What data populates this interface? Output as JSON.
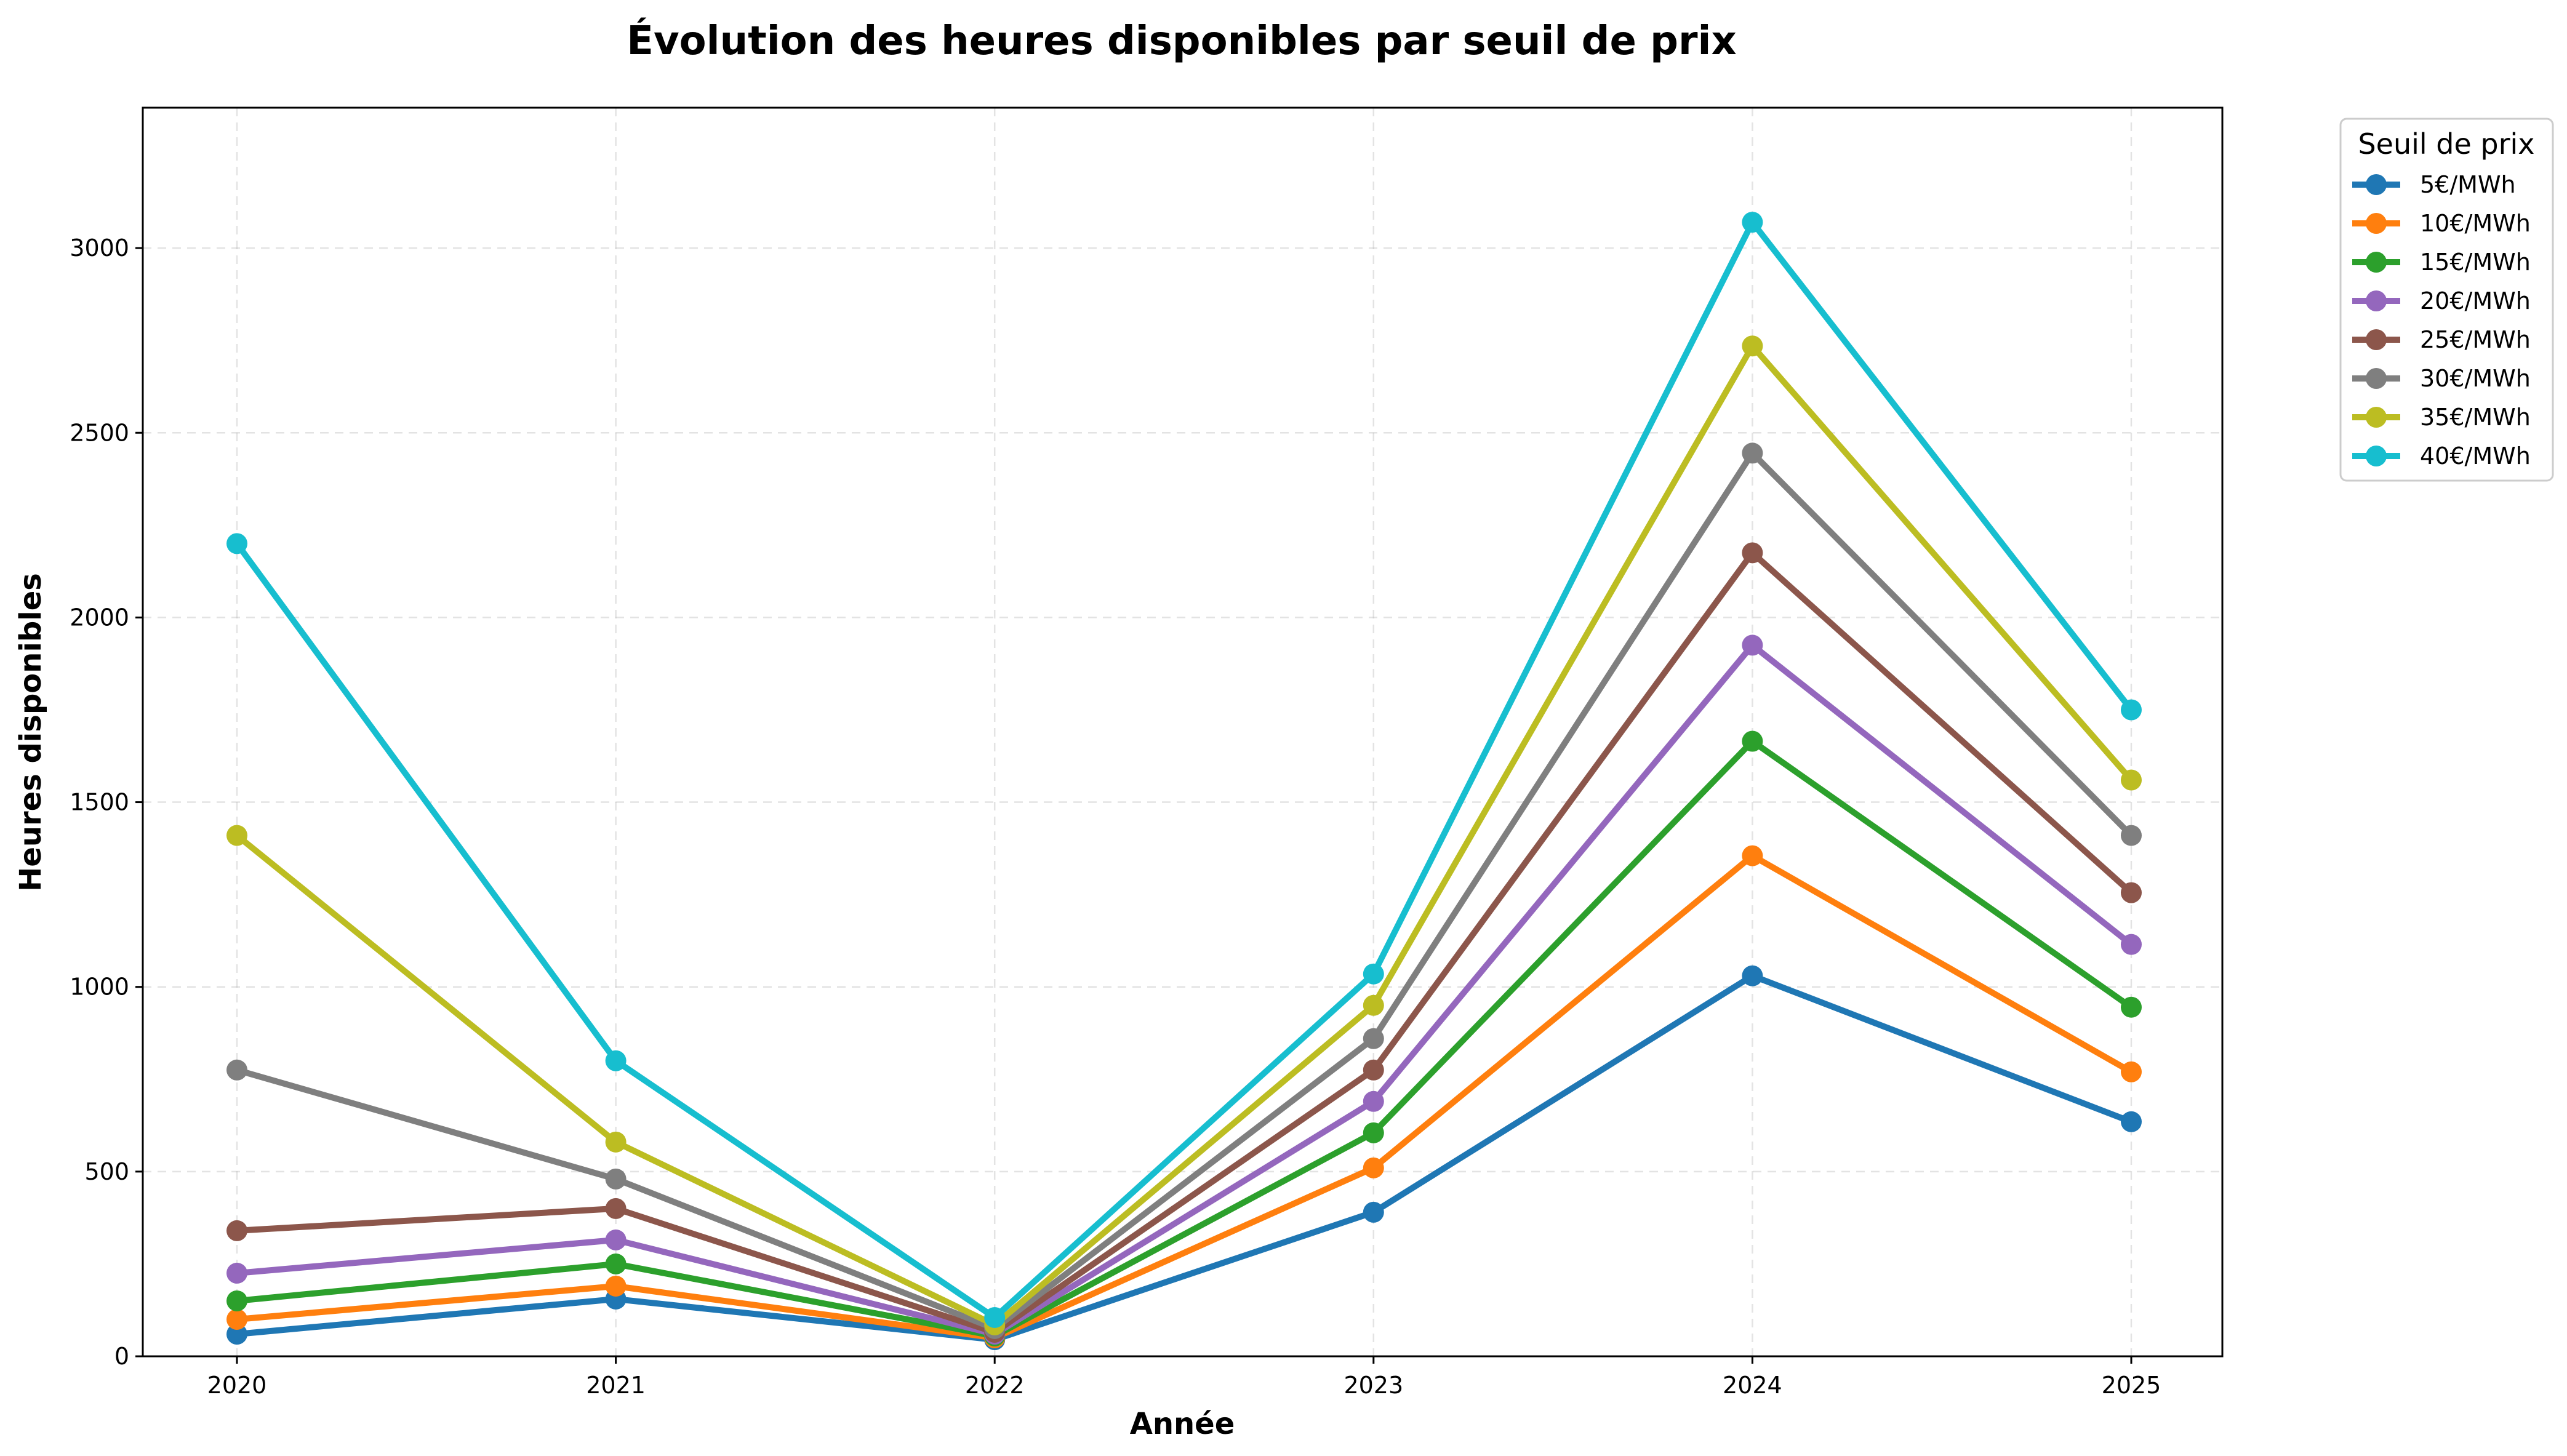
{
  "chart_data": {
    "type": "line",
    "title": "Évolution des heures disponibles par seuil de prix",
    "xlabel": "Année",
    "ylabel": "Heures disponibles",
    "categories": [
      "2020",
      "2021",
      "2022",
      "2023",
      "2024",
      "2025"
    ],
    "ylim": [
      0,
      3380
    ],
    "y_ticks": [
      0,
      500,
      1000,
      1500,
      2000,
      2500,
      3000
    ],
    "grid": true,
    "legend": {
      "title": "Seuil de prix",
      "placement": "outside-top-right"
    },
    "series": [
      {
        "name": "5€/MWh",
        "color": "#1f77b4",
        "values": [
          60,
          155,
          45,
          390,
          1030,
          635
        ]
      },
      {
        "name": "10€/MWh",
        "color": "#ff7f0e",
        "values": [
          100,
          190,
          50,
          510,
          1355,
          770
        ]
      },
      {
        "name": "15€/MWh",
        "color": "#2ca02c",
        "values": [
          150,
          250,
          55,
          605,
          1665,
          945
        ]
      },
      {
        "name": "20€/MWh",
        "color": "#9467bd",
        "values": [
          225,
          315,
          60,
          690,
          1925,
          1115
        ]
      },
      {
        "name": "25€/MWh",
        "color": "#8c564b",
        "values": [
          340,
          400,
          65,
          775,
          2175,
          1255
        ]
      },
      {
        "name": "30€/MWh",
        "color": "#7f7f7f",
        "values": [
          775,
          480,
          75,
          860,
          2445,
          1410
        ]
      },
      {
        "name": "35€/MWh",
        "color": "#bcbd22",
        "values": [
          1410,
          580,
          85,
          950,
          2735,
          1560
        ]
      },
      {
        "name": "40€/MWh",
        "color": "#17becf",
        "values": [
          2200,
          800,
          105,
          1035,
          3070,
          1750
        ]
      }
    ]
  }
}
